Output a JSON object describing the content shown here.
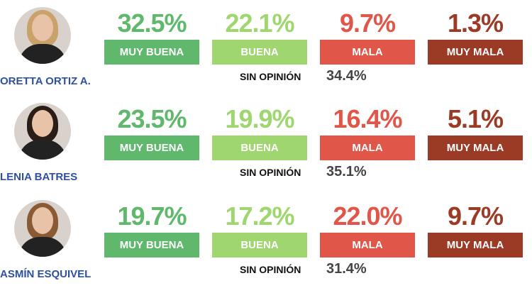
{
  "categories": [
    "MUY BUENA",
    "BUENA",
    "MALA",
    "MUY MALA"
  ],
  "colors": [
    "#5fb86b",
    "#9fd66f",
    "#e0574a",
    "#9b3b26"
  ],
  "no_opinion_label": "SIN OPINIÓN",
  "rows": [
    {
      "name": "ORETTA ORTIZ A.",
      "values": [
        "32.5%",
        "22.1%",
        "9.7%",
        "1.3%"
      ],
      "no_opinion": "34.4%"
    },
    {
      "name": "LENIA BATRES",
      "values": [
        "23.5%",
        "19.9%",
        "16.4%",
        "5.1%"
      ],
      "no_opinion": "35.1%"
    },
    {
      "name": "ASMÍN ESQUIVEL",
      "values": [
        "19.7%",
        "17.2%",
        "22.0%",
        "9.7%"
      ],
      "no_opinion": "31.4%"
    }
  ]
}
